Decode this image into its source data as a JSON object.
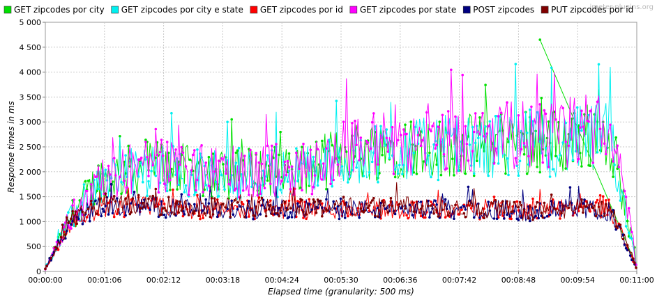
{
  "watermark": "jmeter-plugins.org",
  "chart_data": {
    "type": "line",
    "xlabel": "Elapsed time (granularity: 500 ms)",
    "ylabel": "Response times in ms",
    "xlim_seconds": [
      0,
      660
    ],
    "ylim": [
      0,
      5000
    ],
    "x_ticks": [
      "00:00:00",
      "00:01:06",
      "00:02:12",
      "00:03:18",
      "00:04:24",
      "00:05:30",
      "00:06:36",
      "00:07:42",
      "00:08:48",
      "00:09:54",
      "00:11:00"
    ],
    "y_ticks": [
      "0",
      "500",
      "1 000",
      "1 500",
      "2 000",
      "2 500",
      "3 000",
      "3 500",
      "4 000",
      "4 500",
      "5 000"
    ],
    "grid": true,
    "legend_position": "top",
    "series": [
      {
        "name": "GET zipcodes por city",
        "color": "#00e000",
        "x": [
          0,
          30,
          60,
          90,
          120,
          150,
          180,
          210,
          240,
          270,
          300,
          330,
          360,
          390,
          420,
          450,
          480,
          510,
          540,
          570,
          600,
          630,
          645,
          660
        ],
        "y": [
          50,
          1150,
          1850,
          2000,
          2150,
          2050,
          2000,
          1950,
          2000,
          2050,
          2100,
          2350,
          2450,
          2500,
          2500,
          2550,
          2500,
          2600,
          2650,
          2600,
          2700,
          2750,
          1500,
          100
        ],
        "peak": {
          "x": 552,
          "y": 4650
        }
      },
      {
        "name": "GET zipcodes por city e state",
        "color": "#00f0f0",
        "x": [
          0,
          30,
          60,
          90,
          120,
          150,
          180,
          210,
          240,
          270,
          300,
          330,
          360,
          390,
          420,
          450,
          480,
          510,
          540,
          570,
          600,
          630,
          645,
          660
        ],
        "y": [
          50,
          1100,
          1800,
          1950,
          2050,
          2000,
          1950,
          1950,
          1950,
          2000,
          2050,
          2250,
          2400,
          2450,
          2450,
          2500,
          2450,
          2550,
          2600,
          2550,
          2650,
          2700,
          1450,
          100
        ]
      },
      {
        "name": "GET zipcodes por id",
        "color": "#ff0000",
        "x": [
          0,
          30,
          60,
          90,
          120,
          150,
          180,
          210,
          240,
          270,
          300,
          330,
          360,
          390,
          420,
          450,
          480,
          510,
          540,
          570,
          600,
          630,
          645,
          660
        ],
        "y": [
          50,
          1000,
          1250,
          1300,
          1300,
          1250,
          1250,
          1250,
          1250,
          1250,
          1250,
          1250,
          1250,
          1250,
          1250,
          1250,
          1250,
          1250,
          1200,
          1250,
          1250,
          1250,
          700,
          50
        ]
      },
      {
        "name": "GET zipcodes por state",
        "color": "#ff00ff",
        "x": [
          0,
          30,
          60,
          90,
          120,
          150,
          180,
          210,
          240,
          270,
          300,
          330,
          360,
          390,
          420,
          450,
          480,
          510,
          540,
          570,
          600,
          630,
          645,
          660
        ],
        "y": [
          50,
          1150,
          1800,
          2050,
          2150,
          2050,
          2000,
          2000,
          2000,
          2050,
          2100,
          2450,
          2550,
          2600,
          2600,
          2650,
          2600,
          2700,
          2750,
          2700,
          2850,
          2950,
          1600,
          100
        ]
      },
      {
        "name": "POST zipcodes",
        "color": "#000080",
        "x": [
          0,
          30,
          60,
          90,
          120,
          150,
          180,
          210,
          240,
          270,
          300,
          330,
          360,
          390,
          420,
          450,
          480,
          510,
          540,
          570,
          600,
          630,
          645,
          660
        ],
        "y": [
          50,
          1000,
          1300,
          1300,
          1300,
          1250,
          1250,
          1250,
          1250,
          1250,
          1250,
          1250,
          1250,
          1250,
          1250,
          1250,
          1250,
          1250,
          1200,
          1250,
          1250,
          1200,
          650,
          50
        ]
      },
      {
        "name": "PUT zipcodes por id",
        "color": "#800000",
        "x": [
          0,
          30,
          60,
          90,
          120,
          150,
          180,
          210,
          240,
          270,
          300,
          330,
          360,
          390,
          420,
          450,
          480,
          510,
          540,
          570,
          600,
          630,
          645,
          660
        ],
        "y": [
          50,
          1050,
          1350,
          1350,
          1350,
          1300,
          1300,
          1300,
          1300,
          1300,
          1300,
          1300,
          1300,
          1300,
          1300,
          1300,
          1250,
          1250,
          1200,
          1250,
          1250,
          1250,
          700,
          50
        ]
      }
    ]
  }
}
